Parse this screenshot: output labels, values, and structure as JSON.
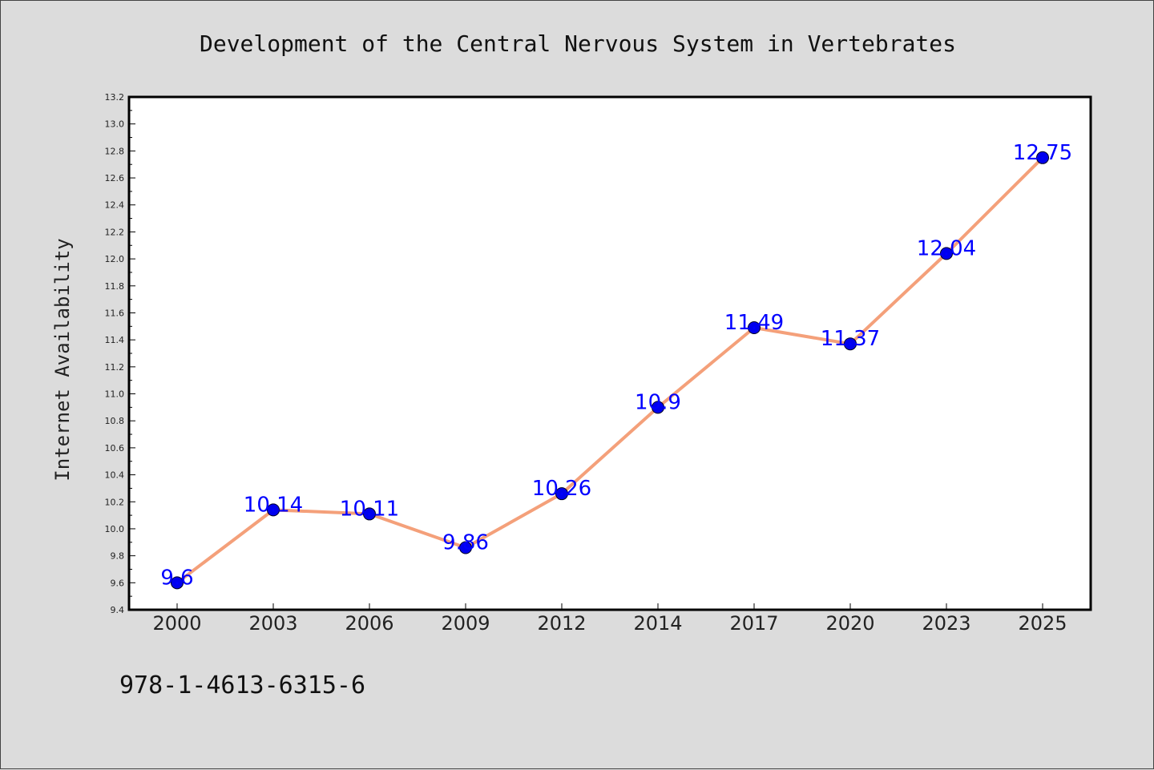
{
  "chart_data": {
    "type": "line",
    "title": "Development of the Central Nervous System in Vertebrates",
    "ylabel": "Internet Availability",
    "xlabel": "",
    "categories": [
      "2000",
      "2003",
      "2006",
      "2009",
      "2012",
      "2014",
      "2017",
      "2020",
      "2023",
      "2025"
    ],
    "series": [
      {
        "values": [
          9.6,
          10.14,
          10.11,
          9.86,
          10.26,
          10.9,
          11.49,
          11.37,
          12.04,
          12.75
        ],
        "labels": [
          "9.6",
          "10.14",
          "10.11",
          "9.86",
          "10.26",
          "10.9",
          "11.49",
          "11.37",
          "12.04",
          "12.75"
        ],
        "line_color": "#f4a07a",
        "marker_color": "#0000ee"
      }
    ],
    "ylim": [
      9.4,
      13.2
    ],
    "yticks": [
      "9.4",
      "9.6",
      "9.8",
      "10.0",
      "10.2",
      "10.4",
      "10.6",
      "10.8",
      "11.0",
      "11.2",
      "11.4",
      "11.6",
      "11.8",
      "12.0",
      "12.2",
      "12.4",
      "12.6",
      "12.8",
      "13.0",
      "13.2"
    ],
    "grid": false,
    "legend": "none",
    "label_color": "#0000ff"
  },
  "footer": {
    "isbn": "978-1-4613-6315-6"
  }
}
